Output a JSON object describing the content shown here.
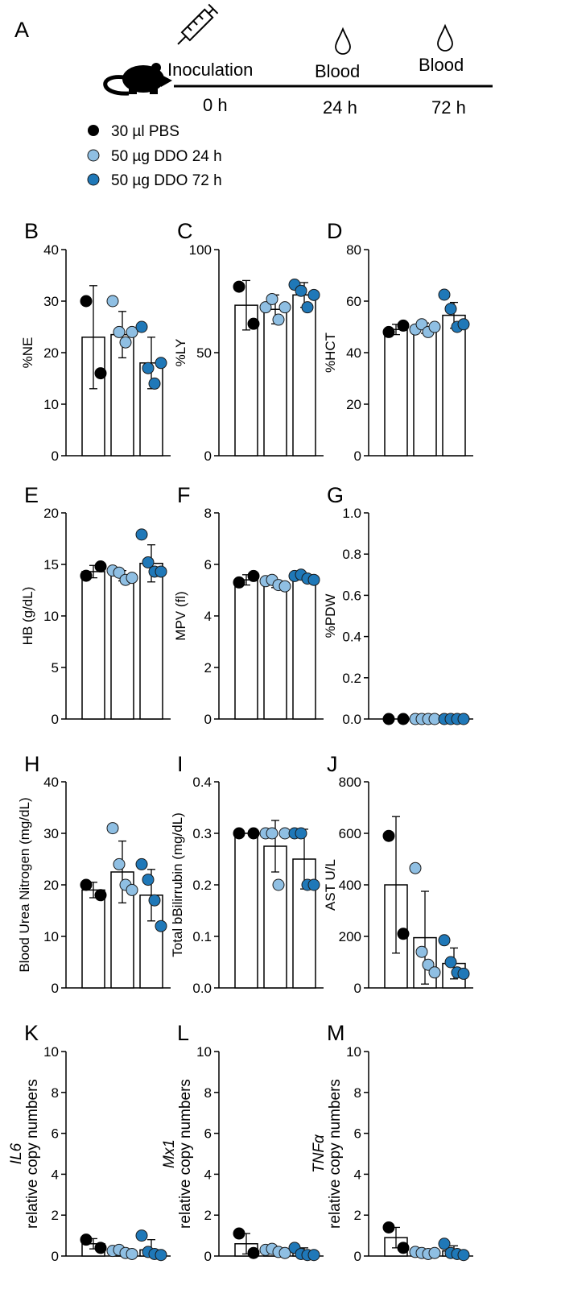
{
  "colors": {
    "pbs": "#000000",
    "ddo24": "#8fbfe3",
    "ddo72": "#1f78b8"
  },
  "timeline": {
    "panel_label": "A",
    "icons": [
      "syringe-icon",
      "mouse-icon",
      "drop-icon"
    ],
    "events": [
      {
        "label": "Inoculation",
        "time": "0 h"
      },
      {
        "label": "Blood",
        "time": "24 h"
      },
      {
        "label": "Blood",
        "time": "72 h"
      }
    ]
  },
  "legend": [
    {
      "label": "30 µl PBS",
      "color": "#000000"
    },
    {
      "label": "50 µg DDO 24 h",
      "color": "#8fbfe3"
    },
    {
      "label": "50 µg DDO 72 h",
      "color": "#1f78b8"
    }
  ],
  "chart_data": [
    {
      "panel": "B",
      "type": "bar",
      "ylabel": "%NE",
      "ylim": [
        0,
        40
      ],
      "yticks": [
        0,
        10,
        20,
        30,
        40
      ],
      "series": [
        {
          "mean": 23,
          "sd": 10,
          "points": [
            30,
            16
          ]
        },
        {
          "mean": 23.5,
          "sd": 4.5,
          "points": [
            30,
            24,
            22,
            24
          ]
        },
        {
          "mean": 18,
          "sd": 5,
          "points": [
            25,
            17,
            14,
            18
          ]
        }
      ]
    },
    {
      "panel": "C",
      "type": "bar",
      "ylabel": "%LY",
      "ylim": [
        0,
        100
      ],
      "yticks": [
        0,
        50,
        100
      ],
      "series": [
        {
          "mean": 73,
          "sd": 12,
          "points": [
            82,
            64
          ]
        },
        {
          "mean": 71,
          "sd": 7,
          "points": [
            72,
            76,
            66,
            72
          ]
        },
        {
          "mean": 78,
          "sd": 6,
          "points": [
            83,
            80,
            72,
            78
          ]
        }
      ]
    },
    {
      "panel": "D",
      "type": "bar",
      "ylabel": "%HCT",
      "ylim": [
        0,
        80
      ],
      "yticks": [
        0,
        20,
        40,
        60,
        80
      ],
      "series": [
        {
          "mean": 49,
          "sd": 2,
          "points": [
            48,
            50.5
          ]
        },
        {
          "mean": 49.5,
          "sd": 2,
          "points": [
            49,
            51,
            48,
            50
          ]
        },
        {
          "mean": 54.5,
          "sd": 5,
          "points": [
            62.5,
            57,
            50,
            51
          ]
        }
      ]
    },
    {
      "panel": "E",
      "type": "bar",
      "ylabel": "HB (g/dL)",
      "ylim": [
        0,
        20
      ],
      "yticks": [
        0,
        5,
        10,
        15,
        20
      ],
      "series": [
        {
          "mean": 14.3,
          "sd": 0.6,
          "points": [
            13.9,
            14.8
          ]
        },
        {
          "mean": 13.9,
          "sd": 0.5,
          "points": [
            14.4,
            14.2,
            13.5,
            13.7
          ]
        },
        {
          "mean": 15.1,
          "sd": 1.8,
          "points": [
            17.9,
            15.2,
            14.3,
            14.3
          ]
        }
      ]
    },
    {
      "panel": "F",
      "type": "bar",
      "ylabel": "MPV (fl)",
      "ylim": [
        0,
        8
      ],
      "yticks": [
        0,
        2,
        4,
        6,
        8
      ],
      "series": [
        {
          "mean": 5.4,
          "sd": 0.2,
          "points": [
            5.3,
            5.55
          ]
        },
        {
          "mean": 5.25,
          "sd": 0.15,
          "points": [
            5.35,
            5.4,
            5.2,
            5.15
          ]
        },
        {
          "mean": 5.5,
          "sd": 0.1,
          "points": [
            5.55,
            5.6,
            5.45,
            5.4
          ]
        }
      ]
    },
    {
      "panel": "G",
      "type": "bar",
      "ylabel": "%PDW",
      "ylim": [
        0,
        1.0
      ],
      "yticks": [
        0.0,
        0.2,
        0.4,
        0.6,
        0.8,
        1.0
      ],
      "series": [
        {
          "mean": 0,
          "sd": 0,
          "points": [
            0,
            0
          ]
        },
        {
          "mean": 0,
          "sd": 0,
          "points": [
            0,
            0,
            0,
            0
          ]
        },
        {
          "mean": 0,
          "sd": 0,
          "points": [
            0,
            0,
            0,
            0
          ]
        }
      ]
    },
    {
      "panel": "H",
      "type": "bar",
      "ylabel": "Blood Urea Nitrogen (mg/dL)",
      "ylim": [
        0,
        40
      ],
      "yticks": [
        0,
        10,
        20,
        30,
        40
      ],
      "series": [
        {
          "mean": 19,
          "sd": 1.5,
          "points": [
            20,
            18
          ]
        },
        {
          "mean": 22.5,
          "sd": 6,
          "points": [
            31,
            24,
            20,
            19
          ]
        },
        {
          "mean": 18,
          "sd": 5,
          "points": [
            24,
            21,
            17,
            12
          ]
        }
      ]
    },
    {
      "panel": "I",
      "type": "bar",
      "ylabel": "Total bBilirrubin (mg/dL)",
      "ylim": [
        0,
        0.4
      ],
      "yticks": [
        0.0,
        0.1,
        0.2,
        0.3,
        0.4
      ],
      "series": [
        {
          "mean": 0.3,
          "sd": 0,
          "points": [
            0.3,
            0.3
          ]
        },
        {
          "mean": 0.275,
          "sd": 0.05,
          "points": [
            0.3,
            0.3,
            0.2,
            0.3
          ]
        },
        {
          "mean": 0.25,
          "sd": 0.058,
          "points": [
            0.3,
            0.3,
            0.2,
            0.2
          ]
        }
      ]
    },
    {
      "panel": "J",
      "type": "bar",
      "ylabel": "AST U/L",
      "ylim": [
        0,
        800
      ],
      "yticks": [
        0,
        200,
        400,
        600,
        800
      ],
      "series": [
        {
          "mean": 400,
          "sd": 265,
          "points": [
            590,
            210
          ]
        },
        {
          "mean": 195,
          "sd": 180,
          "points": [
            465,
            140,
            90,
            60
          ]
        },
        {
          "mean": 95,
          "sd": 60,
          "points": [
            185,
            100,
            60,
            55
          ]
        }
      ]
    },
    {
      "panel": "K",
      "type": "bar",
      "ylabel_gene": "IL6",
      "ylabel": "relative copy numbers",
      "ylim": [
        0,
        10
      ],
      "yticks": [
        0,
        2,
        4,
        6,
        8,
        10
      ],
      "series": [
        {
          "mean": 0.6,
          "sd": 0.25,
          "points": [
            0.8,
            0.4
          ]
        },
        {
          "mean": 0.2,
          "sd": 0.1,
          "points": [
            0.25,
            0.3,
            0.15,
            0.1
          ]
        },
        {
          "mean": 0.3,
          "sd": 0.5,
          "points": [
            1.0,
            0.2,
            0.1,
            0.05
          ]
        }
      ]
    },
    {
      "panel": "L",
      "type": "bar",
      "ylabel_gene": "Mx1",
      "ylabel": "relative copy numbers",
      "ylim": [
        0,
        10
      ],
      "yticks": [
        0,
        2,
        4,
        6,
        8,
        10
      ],
      "series": [
        {
          "mean": 0.6,
          "sd": 0.5,
          "points": [
            1.1,
            0.15
          ]
        },
        {
          "mean": 0.25,
          "sd": 0.1,
          "points": [
            0.3,
            0.35,
            0.2,
            0.15
          ]
        },
        {
          "mean": 0.2,
          "sd": 0.2,
          "points": [
            0.4,
            0.1,
            0.05,
            0.05
          ]
        }
      ]
    },
    {
      "panel": "M",
      "type": "bar",
      "ylabel_gene": "TNFα",
      "ylabel": "relative copy numbers",
      "ylim": [
        0,
        10
      ],
      "yticks": [
        0,
        2,
        4,
        6,
        8,
        10
      ],
      "series": [
        {
          "mean": 0.9,
          "sd": 0.5,
          "points": [
            1.4,
            0.4
          ]
        },
        {
          "mean": 0.15,
          "sd": 0.05,
          "points": [
            0.2,
            0.15,
            0.1,
            0.15
          ]
        },
        {
          "mean": 0.25,
          "sd": 0.25,
          "points": [
            0.6,
            0.15,
            0.1,
            0.05
          ]
        }
      ]
    }
  ]
}
